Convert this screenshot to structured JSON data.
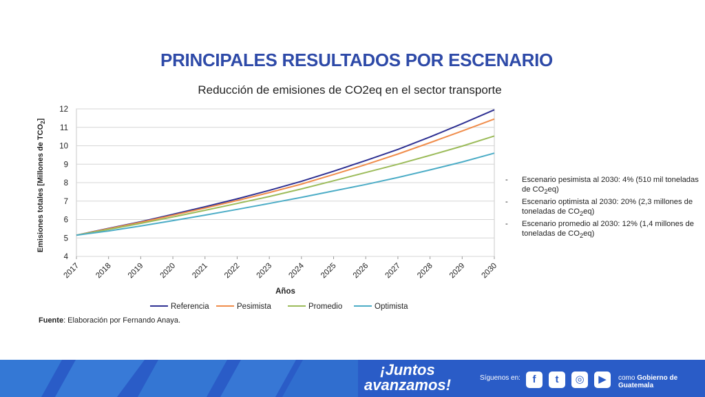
{
  "slide": {
    "title": "PRINCIPALES RESULTADOS POR ESCENARIO",
    "subtitle": "Reducción de emisiones de  CO2eq en el sector transporte"
  },
  "chart_data": {
    "type": "line",
    "xlabel": "Años",
    "ylabel_parts": [
      "Emisiones totales [Millones de TCO",
      "2",
      "]"
    ],
    "x": [
      2017,
      2018,
      2019,
      2020,
      2021,
      2022,
      2023,
      2024,
      2025,
      2026,
      2027,
      2028,
      2029,
      2030
    ],
    "ylim": [
      4,
      12
    ],
    "yticks": [
      4,
      5,
      6,
      7,
      8,
      9,
      10,
      11,
      12
    ],
    "grid": true,
    "legend_position": "bottom",
    "series": [
      {
        "name": "Referencia",
        "color": "#2e3092",
        "values": [
          5.15,
          5.52,
          5.88,
          6.28,
          6.69,
          7.12,
          7.58,
          8.07,
          8.62,
          9.2,
          9.8,
          10.48,
          11.2,
          11.95
        ]
      },
      {
        "name": "Pesimista",
        "color": "#f08c4a",
        "values": [
          5.15,
          5.5,
          5.85,
          6.23,
          6.62,
          7.03,
          7.46,
          7.92,
          8.44,
          8.98,
          9.55,
          10.17,
          10.8,
          11.45
        ]
      },
      {
        "name": "Promedio",
        "color": "#9bbb59",
        "values": [
          5.15,
          5.46,
          5.79,
          6.14,
          6.5,
          6.87,
          7.25,
          7.66,
          8.1,
          8.55,
          9.0,
          9.48,
          9.98,
          10.53
        ]
      },
      {
        "name": "Optimista",
        "color": "#4bacc6",
        "values": [
          5.15,
          5.38,
          5.65,
          5.94,
          6.24,
          6.55,
          6.87,
          7.2,
          7.55,
          7.9,
          8.28,
          8.69,
          9.12,
          9.6
        ]
      }
    ]
  },
  "notes": [
    {
      "dash": "-",
      "before": "Escenario pesimista al 2030: 4% (510 mil toneladas de CO",
      "sub": "2",
      "after": "eq)"
    },
    {
      "dash": "-",
      "before": "Escenario optimista al 2030: 20% (2,3 millones de toneladas de CO",
      "sub": "2",
      "after": "eq)"
    },
    {
      "dash": "-",
      "before": "Escenario promedio al 2030: 12% (1,4 millones de toneladas de CO",
      "sub": "2",
      "after": "eq)"
    }
  ],
  "source": {
    "label": "Fuente",
    "text": ": Elaboración por Fernando Anaya."
  },
  "footer": {
    "slogan_line1": "¡Juntos",
    "slogan_line2": "avanzamos!",
    "follow_text": "Síguenos en:",
    "social": [
      {
        "icon": "facebook-icon",
        "glyph": "f"
      },
      {
        "icon": "twitter-icon",
        "glyph": "t"
      },
      {
        "icon": "instagram-icon",
        "glyph": "◎"
      },
      {
        "icon": "youtube-icon",
        "glyph": "▶"
      }
    ],
    "gov_prefix": "como ",
    "gov_name": "Gobierno de Guatemala",
    "colors": {
      "band": "#2a5cc7",
      "deco": "#3d8fe0"
    }
  }
}
